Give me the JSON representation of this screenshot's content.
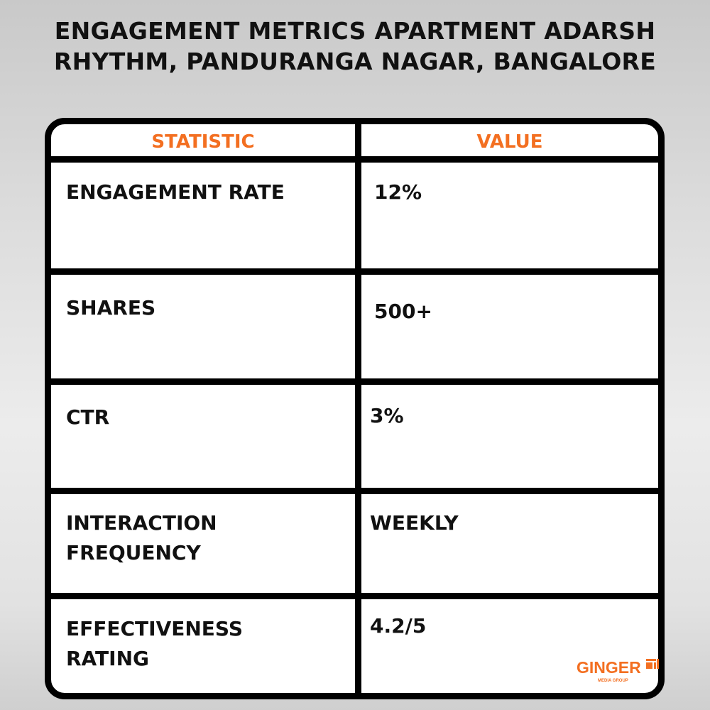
{
  "title_line1": "ENGAGEMENT METRICS APARTMENT ADARSH",
  "title_line2": "RHYTHM, PANDURANGA NAGAR, BANGALORE",
  "table": {
    "headers": [
      "STATISTIC",
      "VALUE"
    ],
    "rows": [
      {
        "statistic": "ENGAGEMENT RATE",
        "value": "12%"
      },
      {
        "statistic": "SHARES",
        "value": "500+"
      },
      {
        "statistic": "CTR",
        "value": "3%"
      },
      {
        "statistic": "INTERACTION FREQUENCY",
        "value": "WEEKLY"
      },
      {
        "statistic": "EFFECTIVENESS RATING",
        "value": "4.2/5"
      }
    ]
  },
  "logo": {
    "name": "GINGER",
    "tagline": "MEDIA GROUP"
  },
  "colors": {
    "accent": "#f36f21",
    "border": "#000000",
    "text": "#111111"
  }
}
